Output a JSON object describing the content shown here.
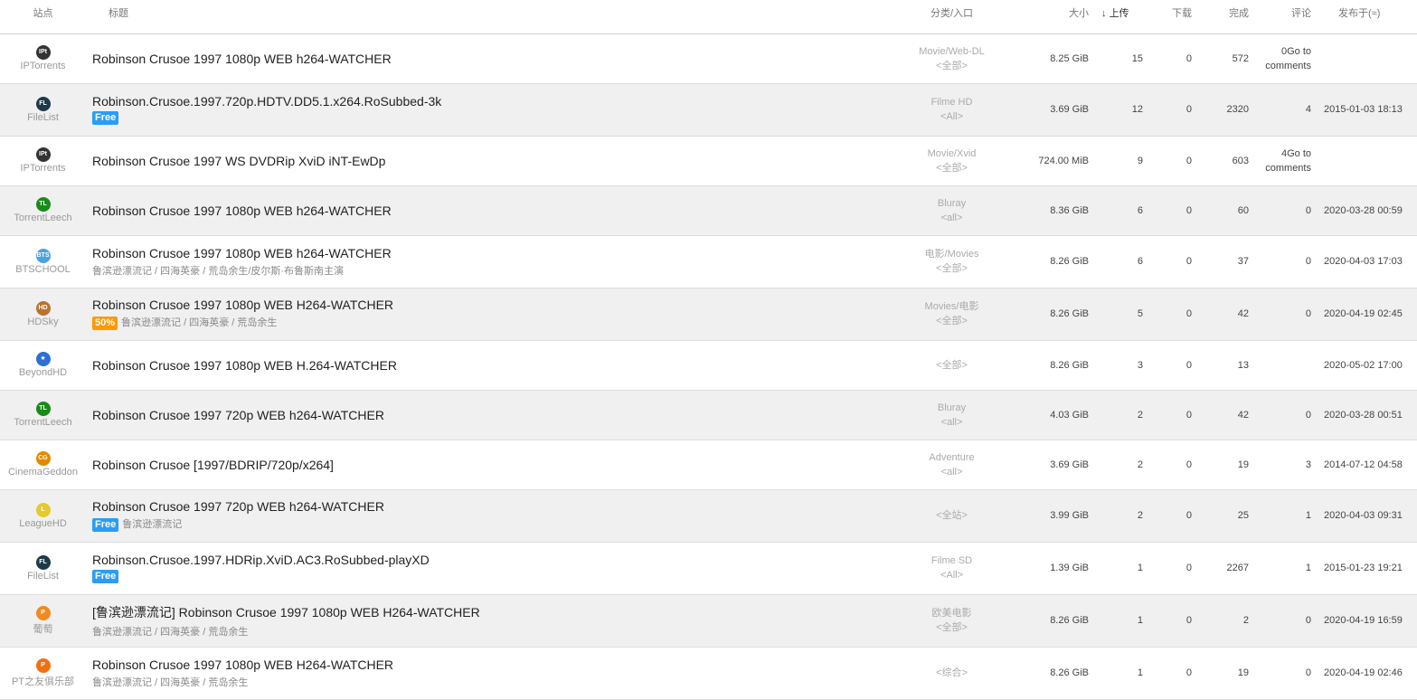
{
  "header": {
    "site": "站点",
    "title": "标题",
    "category": "分类/入口",
    "size": "大小",
    "seeders": "上传",
    "seeders_sort_icon": "arrow-down-icon",
    "leechers": "下载",
    "completed": "完成",
    "comments": "评论",
    "published": "发布于(≈)"
  },
  "colors": {
    "free": "#2a9df4",
    "half": "#ff9900",
    "alt_row": "#f0f0f0"
  },
  "rows": [
    {
      "site": "IPTorrents",
      "icon": "IPt",
      "icon_color": "#333",
      "title": "Robinson Crusoe 1997 1080p WEB h264-WATCHER",
      "tag": "",
      "sub": "",
      "category": "Movie/Web-DL",
      "entry": "<全部>",
      "size": "8.25 GiB",
      "seeders": "15",
      "leechers": "0",
      "completed": "572",
      "comments": "0Go to comments",
      "published": ""
    },
    {
      "site": "FileList",
      "icon": "FL",
      "icon_color": "#1d3a4a",
      "title": "Robinson.Crusoe.1997.720p.HDTV.DD5.1.x264.RoSubbed-3k",
      "tag": "Free",
      "sub": "",
      "category": "Filme HD",
      "entry": "<All>",
      "size": "3.69 GiB",
      "seeders": "12",
      "leechers": "0",
      "completed": "2320",
      "comments": "4",
      "published": "2015-01-03 18:13"
    },
    {
      "site": "IPTorrents",
      "icon": "IPt",
      "icon_color": "#333",
      "title": "Robinson Crusoe 1997 WS DVDRip XviD iNT-EwDp",
      "tag": "",
      "sub": "",
      "category": "Movie/Xvid",
      "entry": "<全部>",
      "size": "724.00 MiB",
      "seeders": "9",
      "leechers": "0",
      "completed": "603",
      "comments": "4Go to comments",
      "published": ""
    },
    {
      "site": "TorrentLeech",
      "icon": "TL",
      "icon_color": "#1a8a1a",
      "title": "Robinson Crusoe 1997 1080p WEB h264-WATCHER",
      "tag": "",
      "sub": "",
      "category": "Bluray",
      "entry": "<all>",
      "size": "8.36 GiB",
      "seeders": "6",
      "leechers": "0",
      "completed": "60",
      "comments": "0",
      "published": "2020-03-28 00:59"
    },
    {
      "site": "BTSCHOOL",
      "icon": "BTS",
      "icon_color": "#4aa3df",
      "title": "Robinson Crusoe 1997 1080p WEB h264-WATCHER",
      "tag": "",
      "sub": "鲁滨逊漂流记 / 四海英豪 / 荒岛余生/皮尔斯·布鲁斯南主演",
      "category": "电影/Movies",
      "entry": "<全部>",
      "size": "8.26 GiB",
      "seeders": "6",
      "leechers": "0",
      "completed": "37",
      "comments": "0",
      "published": "2020-04-03 17:03"
    },
    {
      "site": "HDSky",
      "icon": "HD",
      "icon_color": "#b8732e",
      "title": "Robinson Crusoe 1997 1080p WEB H264-WATCHER",
      "tag": "50%",
      "sub": "鲁滨逊漂流记 / 四海英豪 / 荒岛余生",
      "category": "Movies/电影",
      "entry": "<全部>",
      "size": "8.26 GiB",
      "seeders": "5",
      "leechers": "0",
      "completed": "42",
      "comments": "0",
      "published": "2020-04-19 02:45"
    },
    {
      "site": "BeyondHD",
      "icon": "★",
      "icon_color": "#2d6fd6",
      "title": "Robinson Crusoe 1997 1080p WEB H.264-WATCHER",
      "tag": "",
      "sub": "",
      "category": "",
      "entry": "<全部>",
      "size": "8.26 GiB",
      "seeders": "3",
      "leechers": "0",
      "completed": "13",
      "comments": "",
      "published": "2020-05-02 17:00"
    },
    {
      "site": "TorrentLeech",
      "icon": "TL",
      "icon_color": "#1a8a1a",
      "title": "Robinson Crusoe 1997 720p WEB h264-WATCHER",
      "tag": "",
      "sub": "",
      "category": "Bluray",
      "entry": "<all>",
      "size": "4.03 GiB",
      "seeders": "2",
      "leechers": "0",
      "completed": "42",
      "comments": "0",
      "published": "2020-03-28 00:51"
    },
    {
      "site": "CinemaGeddon",
      "icon": "CG",
      "icon_color": "#e08a00",
      "title": "Robinson Crusoe [1997/BDRIP/720p/x264]",
      "tag": "",
      "sub": "",
      "category": "Adventure",
      "entry": "<all>",
      "size": "3.69 GiB",
      "seeders": "2",
      "leechers": "0",
      "completed": "19",
      "comments": "3",
      "published": "2014-07-12 04:58"
    },
    {
      "site": "LeagueHD",
      "icon": "L",
      "icon_color": "#e6c92e",
      "title": "Robinson Crusoe 1997 720p WEB h264-WATCHER",
      "tag": "Free",
      "sub": "鲁滨逊漂流记",
      "category": "",
      "entry": "<全站>",
      "size": "3.99 GiB",
      "seeders": "2",
      "leechers": "0",
      "completed": "25",
      "comments": "1",
      "published": "2020-04-03 09:31"
    },
    {
      "site": "FileList",
      "icon": "FL",
      "icon_color": "#1d3a4a",
      "title": "Robinson.Crusoe.1997.HDRip.XviD.AC3.RoSubbed-playXD",
      "tag": "Free",
      "sub": "",
      "category": "Filme SD",
      "entry": "<All>",
      "size": "1.39 GiB",
      "seeders": "1",
      "leechers": "0",
      "completed": "2267",
      "comments": "1",
      "published": "2015-01-23 19:21"
    },
    {
      "site": "葡萄",
      "icon": "P",
      "icon_color": "#f08a24",
      "title": "[鲁滨逊漂流记] Robinson Crusoe 1997 1080p WEB H264-WATCHER",
      "tag": "",
      "sub": "鲁滨逊漂流记 / 四海英豪 / 荒岛余生",
      "category": "欧美电影",
      "entry": "<全部>",
      "size": "8.26 GiB",
      "seeders": "1",
      "leechers": "0",
      "completed": "2",
      "comments": "0",
      "published": "2020-04-19 16:59"
    },
    {
      "site": "PT之友俱乐部",
      "icon": "P",
      "icon_color": "#f07010",
      "title": "Robinson Crusoe 1997 1080p WEB H264-WATCHER",
      "tag": "",
      "sub": "鲁滨逊漂流记 / 四海英豪 / 荒岛余生",
      "category": "",
      "entry": "<综合>",
      "size": "8.26 GiB",
      "seeders": "1",
      "leechers": "0",
      "completed": "19",
      "comments": "0",
      "published": "2020-04-19 02:46"
    }
  ]
}
